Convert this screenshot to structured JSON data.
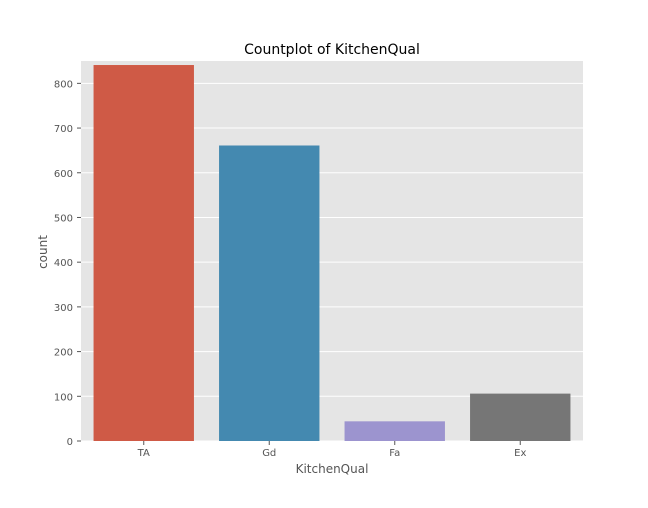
{
  "chart_data": {
    "type": "bar",
    "title": "Countplot of KitchenQual",
    "xlabel": "KitchenQual",
    "ylabel": "count",
    "categories": [
      "TA",
      "Gd",
      "Fa",
      "Ex"
    ],
    "values": [
      841,
      661,
      44,
      106
    ],
    "colors": [
      "#cf5a46",
      "#4489b0",
      "#9c94cf",
      "#767676"
    ],
    "ylim": [
      0,
      850
    ],
    "yticks": [
      0,
      100,
      200,
      300,
      400,
      500,
      600,
      700,
      800
    ],
    "grid": true,
    "style": "ggplot",
    "background": "#e5e5e5"
  }
}
